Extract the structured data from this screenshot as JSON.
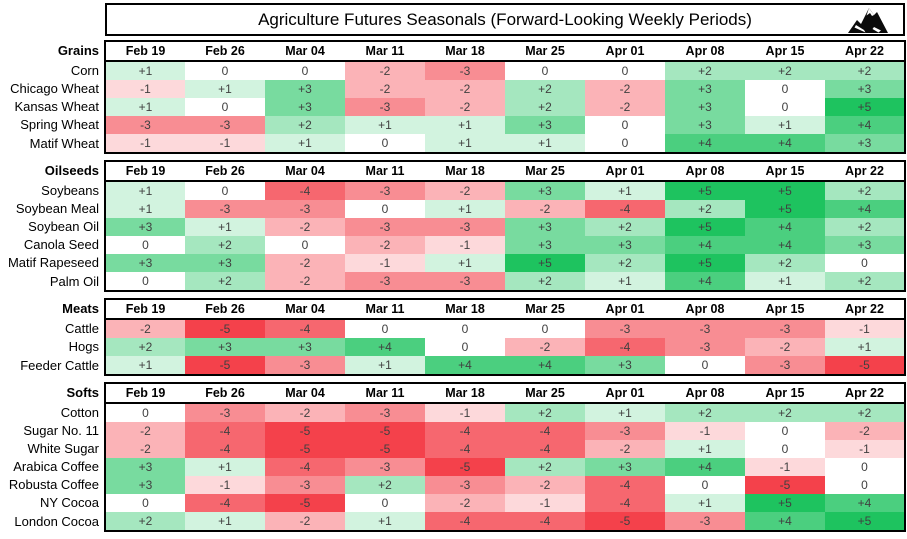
{
  "header": {
    "title": "Agriculture Futures Seasonals (Forward-Looking Weekly Periods)",
    "logo_icon": "mountain-logo"
  },
  "columns": [
    "Feb 19",
    "Feb 26",
    "Mar 04",
    "Mar 11",
    "Mar 18",
    "Mar 25",
    "Apr 01",
    "Apr 08",
    "Apr 15",
    "Apr 22"
  ],
  "colors": {
    "positive_max": "#1EC35F",
    "negative_min": "#F4414B",
    "neutral": "#FFFFFF",
    "border": "#000000",
    "value_text": "#404040"
  },
  "scale": {
    "min": -5,
    "max": 5
  },
  "chart_data": {
    "type": "heatmap",
    "title": "Agriculture Futures Seasonals (Forward-Looking Weekly Periods)",
    "x_labels": [
      "Feb 19",
      "Feb 26",
      "Mar 04",
      "Mar 11",
      "Mar 18",
      "Mar 25",
      "Apr 01",
      "Apr 08",
      "Apr 15",
      "Apr 22"
    ],
    "color_scale": {
      "min": -5,
      "mid": 0,
      "max": 5,
      "min_color": "#F4414B",
      "mid_color": "#FFFFFF",
      "max_color": "#1EC35F"
    },
    "sections": [
      {
        "name": "Grains",
        "rows": [
          {
            "label": "Corn",
            "values": [
              1,
              0,
              0,
              -2,
              -3,
              0,
              0,
              2,
              2,
              2
            ]
          },
          {
            "label": "Chicago Wheat",
            "values": [
              -1,
              1,
              3,
              -2,
              -2,
              2,
              -2,
              3,
              0,
              3
            ]
          },
          {
            "label": "Kansas Wheat",
            "values": [
              1,
              0,
              3,
              -3,
              -2,
              2,
              -2,
              3,
              0,
              5
            ]
          },
          {
            "label": "Spring Wheat",
            "values": [
              -3,
              -3,
              2,
              1,
              1,
              3,
              0,
              3,
              1,
              4
            ]
          },
          {
            "label": "Matif Wheat",
            "values": [
              -1,
              -1,
              1,
              0,
              1,
              1,
              0,
              4,
              4,
              3
            ]
          }
        ]
      },
      {
        "name": "Oilseeds",
        "rows": [
          {
            "label": "Soybeans",
            "values": [
              1,
              0,
              -4,
              -3,
              -2,
              3,
              1,
              5,
              5,
              2
            ]
          },
          {
            "label": "Soybean Meal",
            "values": [
              1,
              -3,
              -3,
              0,
              1,
              -2,
              -4,
              2,
              5,
              4
            ]
          },
          {
            "label": "Soybean Oil",
            "values": [
              3,
              1,
              -2,
              -3,
              -3,
              3,
              2,
              5,
              4,
              2
            ]
          },
          {
            "label": "Canola Seed",
            "values": [
              0,
              2,
              0,
              -2,
              -1,
              3,
              3,
              4,
              4,
              3
            ]
          },
          {
            "label": "Matif Rapeseed",
            "values": [
              3,
              3,
              -2,
              -1,
              1,
              5,
              2,
              5,
              2,
              0
            ]
          },
          {
            "label": "Palm Oil",
            "values": [
              0,
              2,
              -2,
              -3,
              -3,
              2,
              1,
              4,
              1,
              2
            ]
          }
        ]
      },
      {
        "name": "Meats",
        "rows": [
          {
            "label": "Cattle",
            "values": [
              -2,
              -5,
              -4,
              0,
              0,
              0,
              -3,
              -3,
              -3,
              -1
            ]
          },
          {
            "label": "Hogs",
            "values": [
              2,
              3,
              3,
              4,
              0,
              -2,
              -4,
              -3,
              -2,
              1
            ]
          },
          {
            "label": "Feeder Cattle",
            "values": [
              1,
              -5,
              -3,
              1,
              4,
              4,
              3,
              0,
              -3,
              -5
            ]
          }
        ]
      },
      {
        "name": "Softs",
        "rows": [
          {
            "label": "Cotton",
            "values": [
              0,
              -3,
              -2,
              -3,
              -1,
              2,
              1,
              2,
              2,
              2
            ]
          },
          {
            "label": "Sugar No. 11",
            "values": [
              -2,
              -4,
              -5,
              -5,
              -4,
              -4,
              -3,
              -1,
              0,
              -2
            ]
          },
          {
            "label": "White Sugar",
            "values": [
              -2,
              -4,
              -5,
              -5,
              -4,
              -4,
              -2,
              1,
              0,
              -1
            ]
          },
          {
            "label": "Arabica Coffee",
            "values": [
              3,
              1,
              -4,
              -3,
              -5,
              2,
              3,
              4,
              -1,
              0
            ]
          },
          {
            "label": "Robusta Coffee",
            "values": [
              3,
              -1,
              -3,
              2,
              -3,
              -2,
              -4,
              0,
              -5,
              0
            ]
          },
          {
            "label": "NY Cocoa",
            "values": [
              0,
              -4,
              -5,
              0,
              -2,
              -1,
              -4,
              1,
              5,
              4
            ]
          },
          {
            "label": "London Cocoa",
            "values": [
              2,
              1,
              -2,
              1,
              -4,
              -4,
              -5,
              -3,
              4,
              5
            ]
          }
        ]
      }
    ]
  }
}
